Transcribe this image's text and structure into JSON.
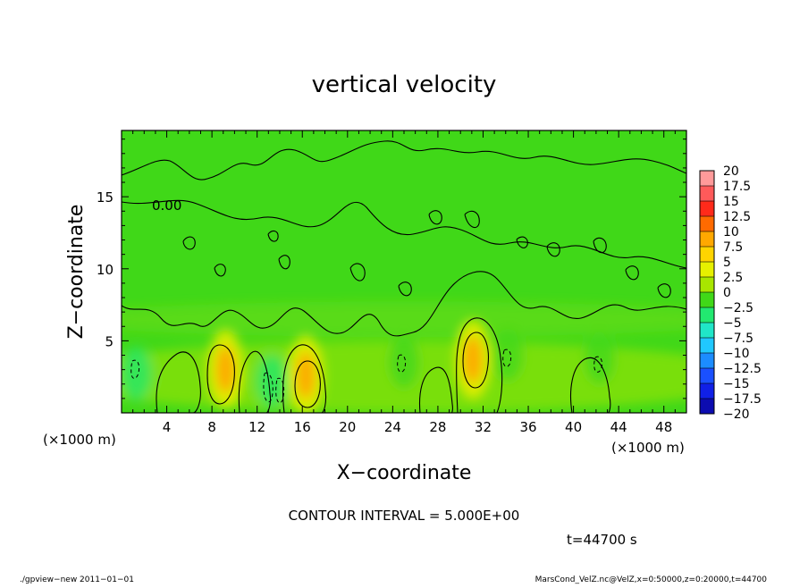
{
  "chart_data": {
    "type": "heatmap",
    "title": "vertical velocity",
    "xlabel": "X−coordinate",
    "ylabel": "Z−coordinate",
    "x_unit_left": "(×1000 m)",
    "x_unit_right": "(×1000 m)",
    "xlim": [
      0,
      50
    ],
    "ylim": [
      0,
      19.6
    ],
    "x_ticks": [
      4,
      8,
      12,
      16,
      20,
      24,
      28,
      32,
      36,
      40,
      44,
      48
    ],
    "x_tick_labels": [
      "4",
      "8",
      "12",
      "16",
      "20",
      "24",
      "28",
      "32",
      "36",
      "40",
      "44",
      "48"
    ],
    "y_ticks": [
      5,
      10,
      15
    ],
    "y_tick_labels": [
      "5",
      "10",
      "15"
    ],
    "contour_label": "0.00",
    "contour_interval_text": "CONTOUR INTERVAL = 5.000E+00",
    "time_text": "t=44700 s",
    "colorbar": {
      "levels": [
        20,
        17.5,
        15,
        12.5,
        10,
        7.5,
        5,
        2.5,
        0,
        -2.5,
        -5,
        -7.5,
        -10,
        -12.5,
        -15,
        -17.5,
        -20
      ],
      "labels": [
        "20",
        "17.5",
        "15",
        "12.5",
        "10",
        "7.5",
        "5",
        "2.5",
        "0",
        "−2.5",
        "−5",
        "−7.5",
        "−10",
        "−12.5",
        "−15",
        "−17.5",
        "−20"
      ],
      "colors": [
        "#ff9a9a",
        "#ff5a5a",
        "#ff2a1a",
        "#ff6a00",
        "#ffa800",
        "#ffd400",
        "#e6f000",
        "#a8e600",
        "#40d818",
        "#22e870",
        "#20e6c8",
        "#20c8ff",
        "#1c8cff",
        "#1a50ff",
        "#1020e6",
        "#0c0cb0",
        "#6010b0"
      ]
    },
    "updrafts": [
      {
        "x": 9.2,
        "z": 3.0,
        "w": 7.5
      },
      {
        "x": 16.3,
        "z": 2.6,
        "w": 7.5
      },
      {
        "x": 31.1,
        "z": 3.7,
        "w": 7.5
      }
    ],
    "downdrafts": [
      {
        "x": 1.3,
        "z": 2.7,
        "w": -5
      },
      {
        "x": 13.3,
        "z": 2.2,
        "w": -5
      },
      {
        "x": 25.0,
        "z": 3.5,
        "w": -2.5
      },
      {
        "x": 34.2,
        "z": 4.0,
        "w": -2.5
      },
      {
        "x": 42.3,
        "z": 3.8,
        "w": -2.5
      }
    ]
  },
  "footer": {
    "left": "./gpview−new   2011−01−01",
    "right": "MarsCond_VelZ.nc@VelZ,x=0:50000,z=0:20000,t=44700"
  }
}
